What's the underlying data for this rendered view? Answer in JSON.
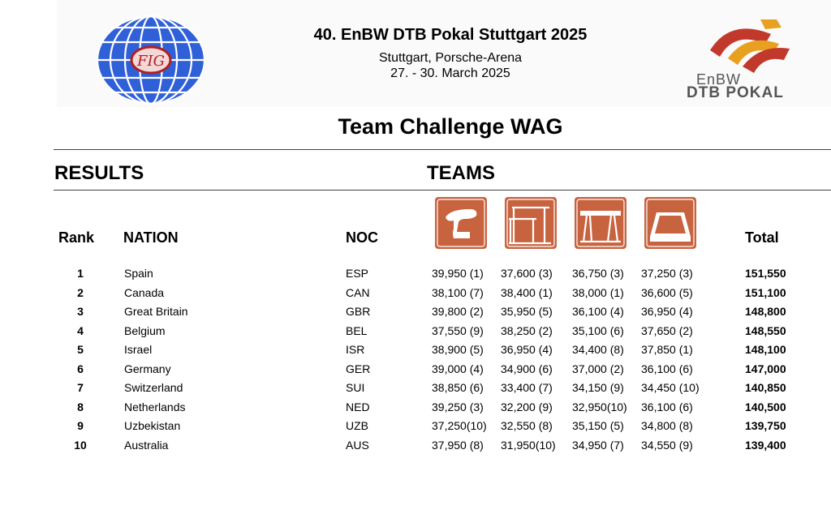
{
  "header": {
    "event_title": "40. EnBW DTB Pokal Stuttgart 2025",
    "venue": "Stuttgart, Porsche-Arena",
    "dates": "27. - 30. March 2025",
    "left_logo_text": "FIG",
    "right_logo_line1": "EnBW",
    "right_logo_line2": "DTB POKAL"
  },
  "competition_title": "Team Challenge WAG",
  "sections": {
    "left": "RESULTS",
    "right": "TEAMS"
  },
  "columns": {
    "rank": "Rank",
    "nation": "NATION",
    "noc": "NOC",
    "total": "Total"
  },
  "apparatus_icons": [
    "vault-icon",
    "uneven-bars-icon",
    "balance-beam-icon",
    "floor-exercise-icon"
  ],
  "colors": {
    "apparatus": "#c8633f",
    "brand_red": "#c0392b",
    "brand_orange": "#e8a020",
    "globe_blue": "#3060d8"
  },
  "rows": [
    {
      "rank": "1",
      "nation": "Spain",
      "noc": "ESP",
      "scores": [
        "39,950 (1)",
        "37,600 (3)",
        "36,750 (3)",
        "37,250 (3)"
      ],
      "total": "151,550"
    },
    {
      "rank": "2",
      "nation": "Canada",
      "noc": "CAN",
      "scores": [
        "38,100 (7)",
        "38,400 (1)",
        "38,000 (1)",
        "36,600 (5)"
      ],
      "total": "151,100"
    },
    {
      "rank": "3",
      "nation": "Great Britain",
      "noc": "GBR",
      "scores": [
        "39,800 (2)",
        "35,950 (5)",
        "36,100 (4)",
        "36,950 (4)"
      ],
      "total": "148,800"
    },
    {
      "rank": "4",
      "nation": "Belgium",
      "noc": "BEL",
      "scores": [
        "37,550 (9)",
        "38,250 (2)",
        "35,100 (6)",
        "37,650 (2)"
      ],
      "total": "148,550"
    },
    {
      "rank": "5",
      "nation": "Israel",
      "noc": "ISR",
      "scores": [
        "38,900 (5)",
        "36,950 (4)",
        "34,400 (8)",
        "37,850 (1)"
      ],
      "total": "148,100"
    },
    {
      "rank": "6",
      "nation": "Germany",
      "noc": "GER",
      "scores": [
        "39,000 (4)",
        "34,900 (6)",
        "37,000 (2)",
        "36,100 (6)"
      ],
      "total": "147,000"
    },
    {
      "rank": "7",
      "nation": "Switzerland",
      "noc": "SUI",
      "scores": [
        "38,850 (6)",
        "33,400 (7)",
        "34,150 (9)",
        "34,450 (10)"
      ],
      "total": "140,850"
    },
    {
      "rank": "8",
      "nation": "Netherlands",
      "noc": "NED",
      "scores": [
        "39,250 (3)",
        "32,200 (9)",
        "32,950(10)",
        "36,100 (6)"
      ],
      "total": "140,500"
    },
    {
      "rank": "9",
      "nation": "Uzbekistan",
      "noc": "UZB",
      "scores": [
        "37,250(10)",
        "32,550 (8)",
        "35,150 (5)",
        "34,800 (8)"
      ],
      "total": "139,750"
    },
    {
      "rank": "10",
      "nation": "Australia",
      "noc": "AUS",
      "scores": [
        "37,950 (8)",
        "31,950(10)",
        "34,950 (7)",
        "34,550 (9)"
      ],
      "total": "139,400"
    }
  ]
}
